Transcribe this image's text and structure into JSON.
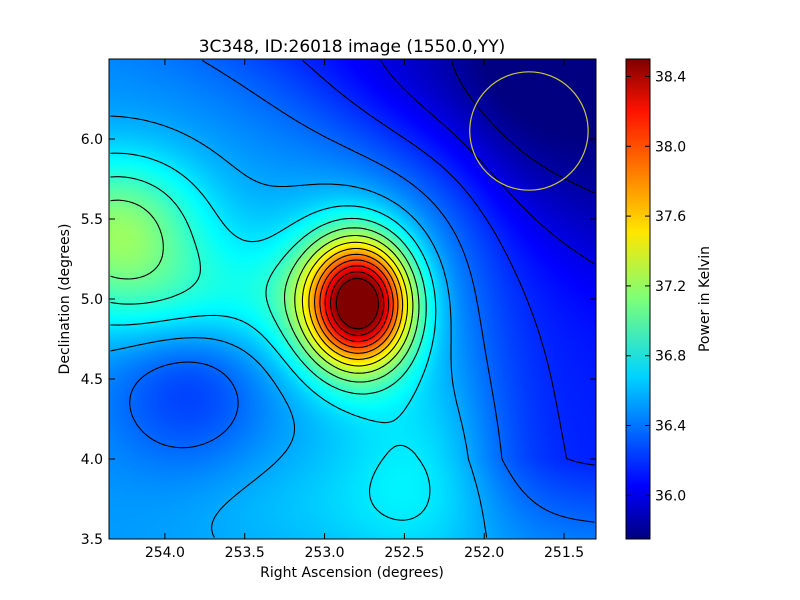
{
  "chart_data": {
    "type": "heatmap",
    "title": "3C348, ID:26018 image (1550.0,YY)",
    "xlabel": "Right Ascension (degrees)",
    "ylabel": "Declination (degrees)",
    "xlim": [
      254.35,
      251.3
    ],
    "ylim": [
      3.5,
      6.5
    ],
    "x_ticks": [
      254.0,
      253.5,
      253.0,
      252.5,
      252.0,
      251.5
    ],
    "x_tick_labels": [
      "254.0",
      "253.5",
      "253.0",
      "252.5",
      "252.0",
      "251.5"
    ],
    "y_ticks": [
      3.5,
      4.0,
      4.5,
      5.0,
      5.5,
      6.0
    ],
    "y_tick_labels": [
      "3.5",
      "4.0",
      "4.5",
      "5.0",
      "5.5",
      "6.0"
    ],
    "colorbar": {
      "label": "Power in Kelvin",
      "range": [
        35.75,
        38.5
      ],
      "ticks": [
        36.0,
        36.4,
        36.8,
        37.2,
        37.6,
        38.0,
        38.4
      ],
      "tick_labels": [
        "36.0",
        "36.4",
        "36.8",
        "37.2",
        "37.6",
        "38.0",
        "38.4"
      ],
      "colormap": "jet"
    },
    "peak": {
      "ra": 252.78,
      "dec": 4.97,
      "value": 38.45
    },
    "contours": true,
    "beam_circle": {
      "ra": 251.72,
      "dec": 6.05,
      "radius_deg": 0.37,
      "color": "#c8c83c"
    }
  }
}
